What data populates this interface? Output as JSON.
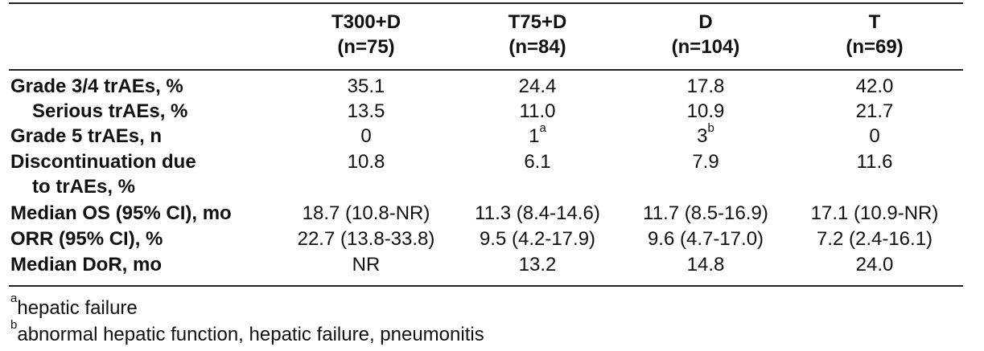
{
  "columns": [
    {
      "name": "T300+D",
      "n": "(n=75)"
    },
    {
      "name": "T75+D",
      "n": "(n=84)"
    },
    {
      "name": "D",
      "n": "(n=104)"
    },
    {
      "name": "T",
      "n": "(n=69)"
    }
  ],
  "rows": [
    {
      "label": "Grade 3/4 trAEs, %",
      "values": [
        "35.1",
        "24.4",
        "17.8",
        "42.0"
      ]
    },
    {
      "label": "Serious trAEs, %",
      "values": [
        "13.5",
        "11.0",
        "10.9",
        "21.7"
      ]
    },
    {
      "label": "Grade 5 trAEs, n",
      "values": [
        "0",
        "1",
        "3",
        "0"
      ],
      "sups": [
        "",
        "a",
        "b",
        ""
      ]
    },
    {
      "label": "Discontinuation due",
      "label2": "to trAEs, %",
      "values": [
        "10.8",
        "6.1",
        "7.9",
        "11.6"
      ]
    },
    {
      "label": "Median OS (95% CI), mo",
      "values": [
        "18.7 (10.8-NR)",
        "11.3 (8.4-14.6)",
        "11.7 (8.5-16.9)",
        "17.1 (10.9-NR)"
      ]
    },
    {
      "label": "ORR (95% CI), %",
      "values": [
        "22.7 (13.8-33.8)",
        "9.5 (4.2-17.9)",
        "9.6 (4.7-17.0)",
        "7.2 (2.4-16.1)"
      ]
    },
    {
      "label": "Median DoR, mo",
      "values": [
        "NR",
        "13.2",
        "14.8",
        "24.0"
      ]
    }
  ],
  "footnotes": [
    {
      "mark": "a",
      "text": "hepatic failure"
    },
    {
      "mark": "b",
      "text": "abnormal hepatic function, hepatic failure, pneumonitis"
    }
  ]
}
